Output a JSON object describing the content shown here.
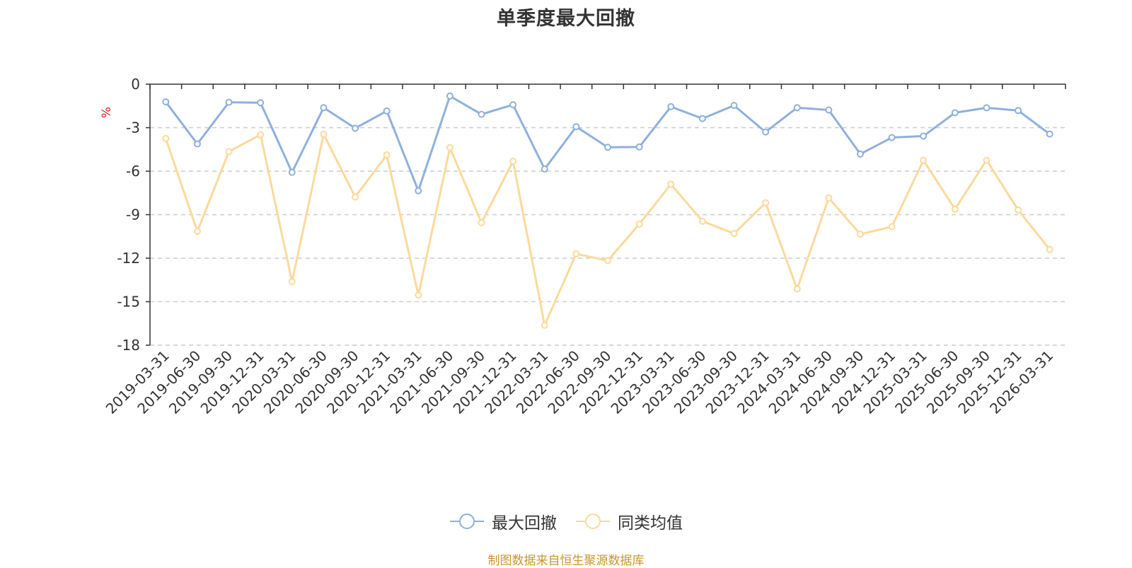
{
  "chart_data": {
    "type": "line",
    "title": "单季度最大回撤",
    "xlabel": "",
    "ylabel": "%",
    "ylim": [
      -18,
      0
    ],
    "yticks": [
      0,
      -3,
      -6,
      -9,
      -12,
      -15,
      -18
    ],
    "grid": true,
    "legend_position": "bottom",
    "categories": [
      "2019-03-31",
      "2019-06-30",
      "2019-09-30",
      "2019-12-31",
      "2020-03-31",
      "2020-06-30",
      "2020-09-30",
      "2020-12-31",
      "2021-03-31",
      "2021-06-30",
      "2021-09-30",
      "2021-12-31",
      "2022-03-31",
      "2022-06-30",
      "2022-09-30",
      "2022-12-31",
      "2023-03-31",
      "2023-06-30",
      "2023-09-30",
      "2023-12-31",
      "2024-03-31",
      "2024-06-30",
      "2024-09-30",
      "2024-12-31",
      "2025-03-31",
      "2025-06-30",
      "2025-09-30",
      "2025-12-31",
      "2026-03-31"
    ],
    "series": [
      {
        "name": "最大回撤",
        "color": "#8fb0dd",
        "values": [
          -1.22,
          -4.12,
          -1.25,
          -1.28,
          -6.08,
          -1.62,
          -3.04,
          -1.85,
          -7.35,
          -0.82,
          -2.08,
          -1.42,
          -5.85,
          -2.93,
          -4.35,
          -4.33,
          -1.55,
          -2.37,
          -1.47,
          -3.3,
          -1.62,
          -1.78,
          -4.82,
          -3.68,
          -3.58,
          -1.97,
          -1.63,
          -1.82,
          -3.44
        ]
      },
      {
        "name": "同类均值",
        "color": "#fcd99a",
        "values": [
          -3.75,
          -10.15,
          -4.65,
          -3.48,
          -13.62,
          -3.45,
          -7.78,
          -4.88,
          -14.55,
          -4.38,
          -9.55,
          -5.32,
          -16.62,
          -11.7,
          -12.17,
          -9.65,
          -6.9,
          -9.45,
          -10.3,
          -8.18,
          -14.12,
          -7.85,
          -10.35,
          -9.83,
          -5.25,
          -8.62,
          -5.25,
          -8.68,
          -11.4
        ]
      }
    ]
  },
  "source_note": "制图数据来自恒生聚源数据库"
}
